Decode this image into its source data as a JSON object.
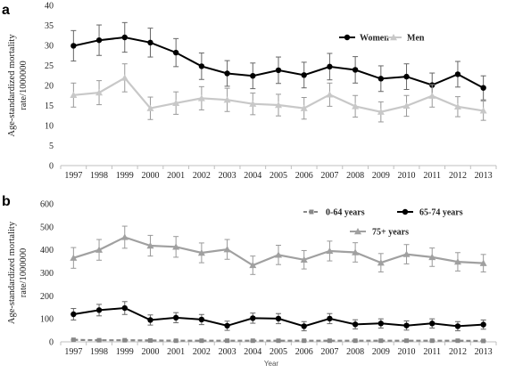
{
  "chart_data": [
    {
      "type": "line",
      "panel_label": "a",
      "ylabel": "Age-standardized mortality rate/1000000",
      "xlabel": "",
      "ylim": [
        0,
        40
      ],
      "yticks": [
        0,
        5,
        10,
        15,
        20,
        25,
        30,
        35,
        40
      ],
      "grid": false,
      "legend": "top-right",
      "x": [
        "1997",
        "1998",
        "1999",
        "2000",
        "2001",
        "2002",
        "2003",
        "2004",
        "2005",
        "2006",
        "2007",
        "2008",
        "2009",
        "2010",
        "2011",
        "2012",
        "2013"
      ],
      "series": [
        {
          "name": "Women",
          "color": "#000000",
          "marker": "circle",
          "dash": "solid",
          "values": [
            29.9,
            31.3,
            32.0,
            30.7,
            28.2,
            24.8,
            23.0,
            22.4,
            23.8,
            22.6,
            24.7,
            23.9,
            21.7,
            22.2,
            20.1,
            22.8,
            19.4
          ],
          "error": [
            3.8,
            3.8,
            3.7,
            3.6,
            3.5,
            3.3,
            3.2,
            3.2,
            3.3,
            3.2,
            3.3,
            3.3,
            3.2,
            3.2,
            3.0,
            3.2,
            3.0
          ]
        },
        {
          "name": "Men",
          "color": "#c8c8c8",
          "marker": "triangle",
          "dash": "solid",
          "values": [
            17.6,
            18.2,
            21.9,
            14.3,
            15.6,
            16.8,
            16.4,
            15.4,
            15.1,
            14.3,
            17.7,
            14.8,
            13.4,
            14.9,
            17.4,
            14.7,
            13.7
          ],
          "error": [
            3.0,
            3.0,
            3.5,
            2.8,
            2.8,
            2.9,
            2.9,
            2.7,
            2.7,
            2.7,
            2.9,
            2.7,
            2.5,
            2.6,
            2.8,
            2.5,
            2.4
          ]
        }
      ]
    },
    {
      "type": "line",
      "panel_label": "b",
      "ylabel": "Age-standardized mortality rate/1000000",
      "xlabel": "Year",
      "ylim": [
        0,
        600
      ],
      "yticks": [
        0,
        100,
        200,
        300,
        400,
        500,
        600
      ],
      "grid": false,
      "legend": "top-right",
      "x": [
        "1997",
        "1998",
        "1999",
        "2000",
        "2001",
        "2002",
        "2003",
        "2004",
        "2005",
        "2006",
        "2007",
        "2008",
        "2009",
        "2010",
        "2011",
        "2012",
        "2013"
      ],
      "series": [
        {
          "name": "0-64 years",
          "color": "#888888",
          "marker": "square",
          "dash": "dashed",
          "values": [
            9,
            7,
            7,
            6,
            5,
            5,
            5,
            5,
            5,
            5,
            5,
            5,
            5,
            5,
            5,
            5,
            4
          ],
          "error": [
            2,
            2,
            2,
            2,
            2,
            2,
            2,
            2,
            2,
            2,
            2,
            2,
            2,
            2,
            2,
            2,
            2
          ]
        },
        {
          "name": "65-74 years",
          "color": "#000000",
          "marker": "circle",
          "dash": "solid",
          "values": [
            120,
            138,
            147,
            95,
            105,
            97,
            70,
            103,
            101,
            68,
            101,
            76,
            80,
            71,
            80,
            68,
            75
          ],
          "error": [
            25,
            25,
            28,
            22,
            22,
            22,
            20,
            22,
            22,
            20,
            22,
            20,
            20,
            20,
            20,
            20,
            20
          ]
        },
        {
          "name": "75+ years",
          "color": "#a0a0a0",
          "marker": "triangle",
          "dash": "solid",
          "values": [
            365,
            400,
            455,
            418,
            413,
            387,
            402,
            333,
            378,
            357,
            395,
            389,
            344,
            381,
            368,
            348,
            342
          ],
          "error": [
            45,
            45,
            48,
            45,
            45,
            43,
            43,
            40,
            42,
            40,
            43,
            42,
            40,
            42,
            40,
            40,
            38
          ]
        }
      ]
    }
  ]
}
